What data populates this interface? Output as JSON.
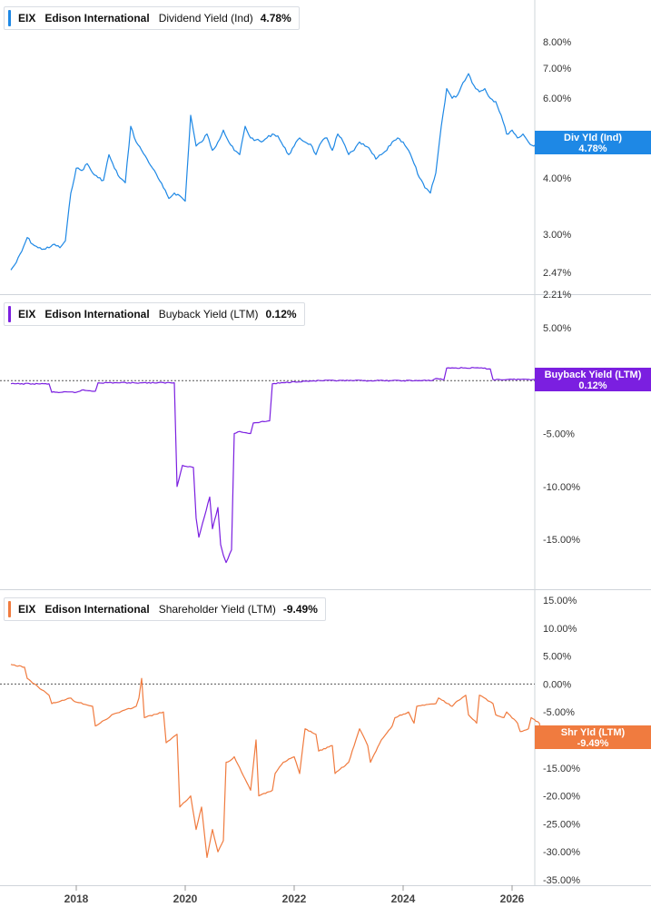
{
  "chart_data": [
    {
      "type": "line",
      "panel": "dividend-yield",
      "ticker": "EIX",
      "company": "Edison International",
      "metric": "Dividend Yield (Ind)",
      "current_value_label": "4.78%",
      "flag_title": "Div Yld (Ind)",
      "flag_value": "4.78%",
      "color": "#1e88e5",
      "scale": "log",
      "ylim": [
        2.21,
        9.5
      ],
      "y_ticks": [
        {
          "v": 8.0,
          "label": "8.00%"
        },
        {
          "v": 7.0,
          "label": "7.00%"
        },
        {
          "v": 6.0,
          "label": "6.00%"
        },
        {
          "v": 5.0,
          "label": "5.00%"
        },
        {
          "v": 4.0,
          "label": "4.00%"
        },
        {
          "v": 3.0,
          "label": "3.00%"
        },
        {
          "v": 2.47,
          "label": "2.47%"
        },
        {
          "v": 2.21,
          "label": "2.21%"
        }
      ],
      "x": [
        2016.8,
        2016.9,
        2017.0,
        2017.1,
        2017.2,
        2017.3,
        2017.4,
        2017.5,
        2017.6,
        2017.7,
        2017.8,
        2017.9,
        2018.0,
        2018.1,
        2018.2,
        2018.3,
        2018.4,
        2018.5,
        2018.6,
        2018.7,
        2018.8,
        2018.9,
        2019.0,
        2019.1,
        2019.2,
        2019.3,
        2019.4,
        2019.5,
        2019.6,
        2019.7,
        2019.8,
        2019.9,
        2020.0,
        2020.1,
        2020.2,
        2020.3,
        2020.4,
        2020.5,
        2020.6,
        2020.7,
        2020.8,
        2020.9,
        2021.0,
        2021.1,
        2021.2,
        2021.3,
        2021.4,
        2021.5,
        2021.6,
        2021.7,
        2021.8,
        2021.9,
        2022.0,
        2022.1,
        2022.2,
        2022.3,
        2022.4,
        2022.5,
        2022.6,
        2022.7,
        2022.8,
        2022.9,
        2023.0,
        2023.1,
        2023.2,
        2023.3,
        2023.4,
        2023.5,
        2023.6,
        2023.7,
        2023.8,
        2023.9,
        2024.0,
        2024.1,
        2024.2,
        2024.3,
        2024.4,
        2024.5,
        2024.6,
        2024.7,
        2024.8,
        2024.9,
        2025.0,
        2025.1,
        2025.2,
        2025.3,
        2025.4,
        2025.5,
        2025.6,
        2025.7,
        2025.8,
        2025.9,
        2026.0,
        2026.1,
        2026.2,
        2026.3,
        2026.4,
        2026.55
      ],
      "values": [
        2.5,
        2.6,
        2.75,
        2.95,
        2.85,
        2.8,
        2.78,
        2.8,
        2.85,
        2.8,
        2.9,
        3.7,
        4.2,
        4.15,
        4.3,
        4.1,
        4.0,
        3.95,
        4.5,
        4.2,
        4.0,
        3.9,
        5.2,
        4.8,
        4.6,
        4.4,
        4.2,
        4.0,
        3.8,
        3.6,
        3.7,
        3.65,
        3.55,
        5.5,
        4.7,
        4.8,
        5.0,
        4.6,
        4.8,
        5.1,
        4.8,
        4.6,
        4.5,
        5.2,
        4.9,
        4.85,
        4.8,
        4.9,
        5.0,
        4.95,
        4.7,
        4.5,
        4.7,
        4.9,
        4.8,
        4.75,
        4.5,
        4.8,
        4.9,
        4.6,
        5.0,
        4.8,
        4.5,
        4.6,
        4.8,
        4.7,
        4.6,
        4.4,
        4.5,
        4.6,
        4.8,
        4.9,
        4.8,
        4.6,
        4.3,
        4.0,
        3.8,
        3.7,
        4.1,
        5.2,
        6.3,
        6.0,
        6.1,
        6.5,
        6.8,
        6.4,
        6.2,
        6.3,
        6.0,
        5.9,
        5.5,
        5.0,
        5.1,
        4.9,
        5.0,
        4.8,
        4.7,
        4.78
      ]
    },
    {
      "type": "line",
      "panel": "buyback-yield",
      "ticker": "EIX",
      "company": "Edison International",
      "metric": "Buyback Yield (LTM)",
      "current_value_label": "0.12%",
      "flag_title": "Buyback Yield (LTM)",
      "flag_value": "0.12%",
      "color": "#7b1fe0",
      "scale": "linear",
      "ylim": [
        -19.5,
        8.5
      ],
      "zero_line": true,
      "y_ticks": [
        {
          "v": 5,
          "label": "5.00%"
        },
        {
          "v": -5,
          "label": "-5.00%"
        },
        {
          "v": -10,
          "label": "-10.00%"
        },
        {
          "v": -15,
          "label": "-15.00%"
        }
      ],
      "x": [
        2016.8,
        2017.2,
        2017.5,
        2017.55,
        2018.0,
        2018.1,
        2018.35,
        2018.4,
        2019.2,
        2019.8,
        2019.85,
        2019.95,
        2020.15,
        2020.2,
        2020.25,
        2020.45,
        2020.5,
        2020.6,
        2020.65,
        2020.7,
        2020.75,
        2020.85,
        2020.9,
        2021.0,
        2021.2,
        2021.25,
        2021.55,
        2021.6,
        2022.0,
        2022.5,
        2023.0,
        2023.5,
        2024.0,
        2024.5,
        2024.6,
        2024.75,
        2024.8,
        2025.4,
        2025.6,
        2025.65,
        2026.0,
        2026.55
      ],
      "values": [
        -0.3,
        -0.3,
        -0.3,
        -1.1,
        -1.1,
        -0.9,
        -1.0,
        -0.2,
        -0.2,
        -0.2,
        -10.0,
        -8.0,
        -8.2,
        -13.0,
        -14.8,
        -11.0,
        -14.0,
        -12.0,
        -15.5,
        -16.5,
        -17.2,
        -16.0,
        -5.0,
        -4.8,
        -5.0,
        -4.0,
        -3.8,
        -0.3,
        -0.1,
        0.0,
        0.0,
        0.0,
        0.0,
        0.0,
        0.2,
        0.1,
        1.2,
        1.2,
        1.1,
        0.1,
        0.12,
        0.12
      ]
    },
    {
      "type": "line",
      "panel": "shareholder-yield",
      "ticker": "EIX",
      "company": "Edison International",
      "metric": "Shareholder Yield (LTM)",
      "current_value_label": "-9.49%",
      "flag_title": "Shr Yld (LTM)",
      "flag_value": "-9.49%",
      "color": "#f07b3f",
      "scale": "linear",
      "ylim": [
        -35.5,
        16.5
      ],
      "zero_line": true,
      "y_ticks": [
        {
          "v": 15,
          "label": "15.00%"
        },
        {
          "v": 10,
          "label": "10.00%"
        },
        {
          "v": 5,
          "label": "5.00%"
        },
        {
          "v": 0,
          "label": "0.00%"
        },
        {
          "v": -5,
          "label": "-5.00%"
        },
        {
          "v": -10,
          "label": "-10.00%"
        },
        {
          "v": -15,
          "label": "-15.00%"
        },
        {
          "v": -20,
          "label": "-20.00%"
        },
        {
          "v": -25,
          "label": "-25.00%"
        },
        {
          "v": -30,
          "label": "-30.00%"
        },
        {
          "v": -35,
          "label": "-35.00%"
        }
      ],
      "x": [
        2016.8,
        2017.05,
        2017.1,
        2017.5,
        2017.55,
        2017.9,
        2017.95,
        2018.3,
        2018.35,
        2018.6,
        2018.65,
        2019.1,
        2019.15,
        2019.2,
        2019.25,
        2019.6,
        2019.65,
        2019.85,
        2019.9,
        2020.1,
        2020.2,
        2020.3,
        2020.4,
        2020.5,
        2020.6,
        2020.7,
        2020.75,
        2020.85,
        2020.9,
        2021.1,
        2021.2,
        2021.3,
        2021.35,
        2021.6,
        2021.65,
        2021.8,
        2022.0,
        2022.1,
        2022.2,
        2022.4,
        2022.45,
        2022.7,
        2022.75,
        2023.0,
        2023.2,
        2023.35,
        2023.4,
        2023.6,
        2023.8,
        2023.85,
        2024.1,
        2024.2,
        2024.25,
        2024.6,
        2024.65,
        2024.9,
        2025.0,
        2025.15,
        2025.2,
        2025.35,
        2025.4,
        2025.65,
        2025.7,
        2025.85,
        2025.9,
        2026.1,
        2026.15,
        2026.3,
        2026.35,
        2026.5,
        2026.55
      ],
      "values": [
        3.5,
        3.0,
        1.0,
        -2.0,
        -3.5,
        -2.5,
        -3.0,
        -4.0,
        -7.5,
        -6.0,
        -5.5,
        -4.0,
        -2.5,
        1.0,
        -6.0,
        -5.0,
        -10.5,
        -9.0,
        -22.0,
        -20.0,
        -26.0,
        -22.0,
        -31.0,
        -26.0,
        -30.0,
        -28.0,
        -14.0,
        -13.5,
        -13.0,
        -17.0,
        -19.0,
        -10.0,
        -20.0,
        -19.0,
        -16.0,
        -14.0,
        -13.0,
        -16.0,
        -8.0,
        -9.0,
        -12.0,
        -11.0,
        -16.0,
        -14.0,
        -8.0,
        -11.0,
        -14.0,
        -10.0,
        -7.5,
        -6.0,
        -5.0,
        -7.0,
        -4.0,
        -3.5,
        -2.5,
        -4.0,
        -3.0,
        -2.0,
        -5.5,
        -7.0,
        -2.0,
        -3.5,
        -5.5,
        -6.0,
        -5.0,
        -7.0,
        -8.5,
        -8.0,
        -6.0,
        -7.0,
        -9.49
      ]
    }
  ],
  "x_axis": {
    "ticks": [
      {
        "v": 2018,
        "label": "2018"
      },
      {
        "v": 2020,
        "label": "2020"
      },
      {
        "v": 2022,
        "label": "2022"
      },
      {
        "v": 2024,
        "label": "2024"
      },
      {
        "v": 2026,
        "label": "2026"
      }
    ],
    "xlim": [
      2016.6,
      2026.6
    ]
  }
}
